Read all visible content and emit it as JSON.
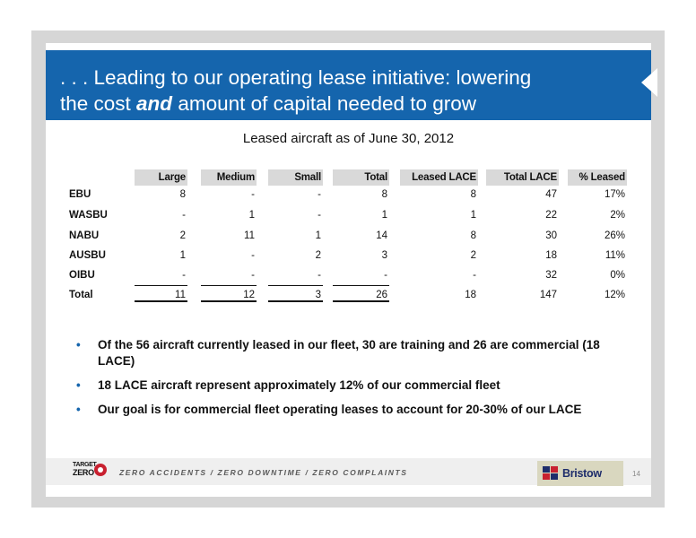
{
  "header": {
    "title_line1": ". . . Leading to our operating lease initiative: lowering",
    "title_line2_pre": "the cost ",
    "title_line2_emph": "and",
    "title_line2_post": " amount of capital needed to grow"
  },
  "table": {
    "title": "Leased aircraft as of June 30, 2012",
    "columns": [
      "Large",
      "Medium",
      "Small",
      "Total",
      "Leased LACE",
      "Total LACE",
      "% Leased"
    ],
    "rows": [
      {
        "label": "EBU",
        "values": [
          "8",
          "-",
          "-",
          "8",
          "8",
          "47",
          "17%"
        ]
      },
      {
        "label": "WASBU",
        "values": [
          "-",
          "1",
          "-",
          "1",
          "1",
          "22",
          "2%"
        ]
      },
      {
        "label": "NABU",
        "values": [
          "2",
          "11",
          "1",
          "14",
          "8",
          "30",
          "26%"
        ]
      },
      {
        "label": "AUSBU",
        "values": [
          "1",
          "-",
          "2",
          "3",
          "2",
          "18",
          "11%"
        ]
      },
      {
        "label": "OIBU",
        "values": [
          "-",
          "-",
          "-",
          "-",
          "-",
          "32",
          "0%"
        ]
      },
      {
        "label": "Total",
        "values": [
          "11",
          "12",
          "3",
          "26",
          "18",
          "147",
          "12%"
        ]
      }
    ]
  },
  "bullets": [
    "Of the 56 aircraft currently leased in our fleet, 30 are training and 26 are commercial (18 LACE)",
    "18 LACE aircraft represent approximately 12% of our commercial fleet",
    "Our goal is for commercial fleet operating leases to account for 20-30% of our LACE"
  ],
  "footer": {
    "logo_line1": "TARGET",
    "logo_line2": "ZERO",
    "tagline": "ZERO ACCIDENTS / ZERO DOWNTIME / ZERO COMPLAINTS",
    "brand": "Bristow",
    "page_number": "14"
  },
  "colors": {
    "header_blue": "#1565ad",
    "frame_gray": "#d6d6d6",
    "table_header_gray": "#d9d9d9",
    "brand_box": "#d9d7bf",
    "logo_red": "#c8202f"
  }
}
